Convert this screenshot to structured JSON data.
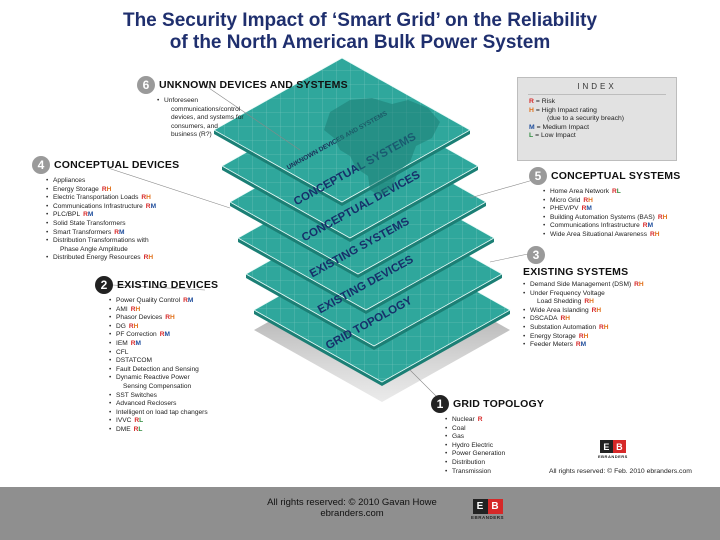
{
  "title": {
    "line1": "The Security Impact of ‘Smart Grid’ on the Reliability",
    "line2": "of the North American Bulk Power System"
  },
  "colors": {
    "risk": "#d62828",
    "high": "#e0701a",
    "medium": "#1f4e9c",
    "low": "#2e8b3d",
    "layer_teal": "#2fa79c",
    "title_navy": "#1f2f6e"
  },
  "layers": [
    "UNKNOWN DEVICES AND SYSTEMS",
    "CONCEPTUAL SYSTEMS",
    "CONCEPTUAL DEVICES",
    "EXISTING SYSTEMS",
    "EXISTING DEVICES",
    "GRID TOPOLOGY"
  ],
  "index": {
    "title": "INDEX",
    "entries": [
      {
        "code": "R",
        "text": "= Risk",
        "color": "risk"
      },
      {
        "code": "H",
        "text": "= High Impact rating",
        "color": "high"
      },
      {
        "code": "",
        "text": "(due to a security breach)",
        "color": "none"
      },
      {
        "code": "M",
        "text": "= Medium Impact",
        "color": "medium"
      },
      {
        "code": "L",
        "text": "= Low Impact",
        "color": "low"
      }
    ]
  },
  "sections": {
    "s6": {
      "number": "6",
      "title": "UNKNOWN DEVICES AND SYSTEMS",
      "items": [
        {
          "text": "Unforeseen",
          "tag": ""
        },
        {
          "text": "communications/control",
          "tag": "",
          "cont": true
        },
        {
          "text": "devices, and systems for",
          "tag": "",
          "cont": true
        },
        {
          "text": "consumers, and",
          "tag": "",
          "cont": true
        },
        {
          "text": "business (R?)",
          "tag": "",
          "cont": true
        }
      ]
    },
    "s4": {
      "number": "4",
      "title": "CONCEPTUAL DEVICES",
      "items": [
        {
          "text": "Appliances",
          "tag": ""
        },
        {
          "text": "Energy Storage",
          "tag": "RH"
        },
        {
          "text": "Electric Transportation Loads",
          "tag": "RH"
        },
        {
          "text": "Communications Infrastructure",
          "tag": "RM"
        },
        {
          "text": "PLC/BPL",
          "tag": "RM"
        },
        {
          "text": "Solid State Transformers",
          "tag": ""
        },
        {
          "text": "Smart Transformers",
          "tag": "RM"
        },
        {
          "text": "Distribution Transformations with",
          "tag": ""
        },
        {
          "text": "Phase Angle Amplitude",
          "tag": "",
          "cont": true
        },
        {
          "text": "Distributed Energy Resources",
          "tag": "RH"
        }
      ]
    },
    "s2": {
      "number": "2",
      "title": "EXISTING DEVICES",
      "items": [
        {
          "text": "Power Quality Control",
          "tag": "RM"
        },
        {
          "text": "AMI",
          "tag": "RH"
        },
        {
          "text": "Phasor Devices",
          "tag": "RH"
        },
        {
          "text": "DG",
          "tag": "RH"
        },
        {
          "text": "PF Correction",
          "tag": "RM"
        },
        {
          "text": "IEM",
          "tag": "RM"
        },
        {
          "text": "CFL",
          "tag": ""
        },
        {
          "text": "DSTATCOM",
          "tag": ""
        },
        {
          "text": "Fault Detection and Sensing",
          "tag": ""
        },
        {
          "text": "Dynamic Reactive Power",
          "tag": ""
        },
        {
          "text": "Sensing Compensation",
          "tag": "",
          "cont": true
        },
        {
          "text": "SST Switches",
          "tag": ""
        },
        {
          "text": "Advanced Reclosers",
          "tag": ""
        },
        {
          "text": "Intelligent on load tap changers",
          "tag": ""
        },
        {
          "text": "IVVC",
          "tag": "RL"
        },
        {
          "text": "DME",
          "tag": "RL"
        }
      ]
    },
    "s5": {
      "number": "5",
      "title": "CONCEPTUAL SYSTEMS",
      "items": [
        {
          "text": "Home Area Network",
          "tag": "RL"
        },
        {
          "text": "Micro Grid",
          "tag": "RH"
        },
        {
          "text": "PHEV/PV",
          "tag": "RM"
        },
        {
          "text": "Building Automation Systems (BAS)",
          "tag": "RH"
        },
        {
          "text": "Communications Infrastructure",
          "tag": "RM"
        },
        {
          "text": "Wide Area Situational Awareness",
          "tag": "RH"
        }
      ]
    },
    "s3": {
      "number": "3",
      "title": "EXISTING SYSTEMS",
      "items": [
        {
          "text": "Demand Side Management (DSM)",
          "tag": "RH"
        },
        {
          "text": "Under Frequency Voltage",
          "tag": ""
        },
        {
          "text": "Load Shedding",
          "tag": "RH",
          "cont": true
        },
        {
          "text": "Wide Area Islanding",
          "tag": "RH"
        },
        {
          "text": "DSCADA",
          "tag": "RH"
        },
        {
          "text": "Substation Automation",
          "tag": "RH"
        },
        {
          "text": "Energy Storage",
          "tag": "RH"
        },
        {
          "text": "Feeder Meters",
          "tag": "RM"
        }
      ]
    },
    "s1": {
      "number": "1",
      "title": "GRID TOPOLOGY",
      "items": [
        {
          "text": "Nuclear",
          "tag": "R"
        },
        {
          "text": "Coal",
          "tag": ""
        },
        {
          "text": "Gas",
          "tag": ""
        },
        {
          "text": "Hydro Electric",
          "tag": ""
        },
        {
          "text": "Power Generation",
          "tag": ""
        },
        {
          "text": "Distribution",
          "tag": ""
        },
        {
          "text": "Transmission",
          "tag": ""
        }
      ]
    }
  },
  "logo": {
    "letters": [
      "E",
      "B"
    ],
    "word": "EBRANDERS"
  },
  "rights_inner": "All rights reserved: © Feb. 2010 ebranders.com",
  "footer": {
    "line1": "All rights reserved: © 2010 Gavan Howe",
    "line2": "ebranders.com"
  }
}
